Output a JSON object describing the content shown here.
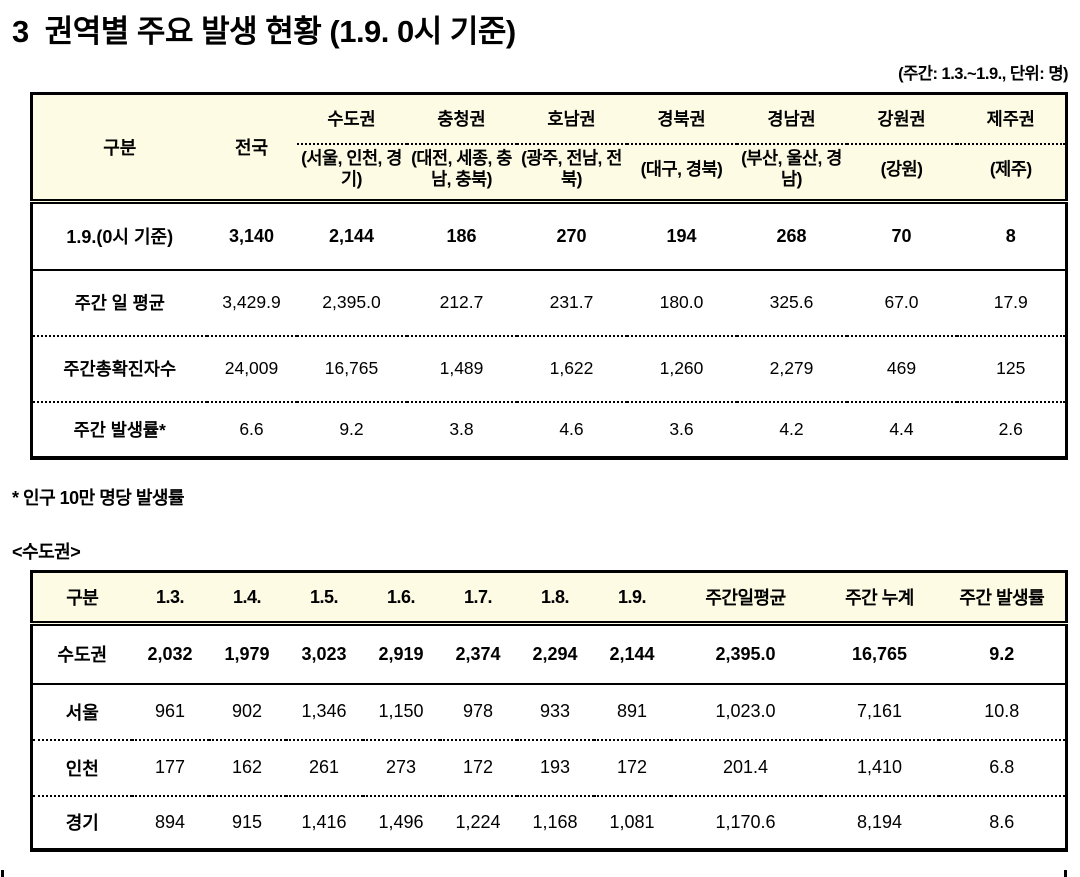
{
  "page": {
    "title_num": "3",
    "title_text": "권역별 주요 발생 현황 (1.9. 0시 기준)",
    "unit_note": "(주간: 1.3.~1.9., 단위: 명)",
    "footnote": "* 인구 10만 명당 발생률",
    "section2_heading": "<수도권>"
  },
  "colors": {
    "header_bg": "#FDFBE3",
    "border": "#000000"
  },
  "table1": {
    "col_header_category": "구분",
    "col_header_national": "전국",
    "regions": [
      {
        "name": "수도권",
        "sub": "(서울, 인천, 경기)"
      },
      {
        "name": "충청권",
        "sub": "(대전, 세종, 충남, 충북)"
      },
      {
        "name": "호남권",
        "sub": "(광주, 전남, 전북)"
      },
      {
        "name": "경북권",
        "sub": "(대구, 경북)"
      },
      {
        "name": "경남권",
        "sub": "(부산, 울산, 경남)"
      },
      {
        "name": "강원권",
        "sub": "(강원)"
      },
      {
        "name": "제주권",
        "sub": "(제주)"
      }
    ],
    "rows": [
      {
        "label": "1.9.(0시 기준)",
        "bold": true,
        "values": [
          "3,140",
          "2,144",
          "186",
          "270",
          "194",
          "268",
          "70",
          "8"
        ]
      },
      {
        "label": "주간 일 평균",
        "bold": false,
        "values": [
          "3,429.9",
          "2,395.0",
          "212.7",
          "231.7",
          "180.0",
          "325.6",
          "67.0",
          "17.9"
        ]
      },
      {
        "label": "주간총확진자수",
        "bold": false,
        "values": [
          "24,009",
          "16,765",
          "1,489",
          "1,622",
          "1,260",
          "2,279",
          "469",
          "125"
        ]
      },
      {
        "label": "주간 발생률*",
        "bold": false,
        "values": [
          "6.6",
          "9.2",
          "3.8",
          "4.6",
          "3.6",
          "4.2",
          "4.4",
          "2.6"
        ]
      }
    ]
  },
  "table2": {
    "headers": [
      "구분",
      "1.3.",
      "1.4.",
      "1.5.",
      "1.6.",
      "1.7.",
      "1.8.",
      "1.9.",
      "주간일평균",
      "주간 누계",
      "주간 발생률"
    ],
    "rows": [
      {
        "label": "수도권",
        "bold": true,
        "values": [
          "2,032",
          "1,979",
          "3,023",
          "2,919",
          "2,374",
          "2,294",
          "2,144",
          "2,395.0",
          "16,765",
          "9.2"
        ]
      },
      {
        "label": "서울",
        "bold": false,
        "values": [
          "961",
          "902",
          "1,346",
          "1,150",
          "978",
          "933",
          "891",
          "1,023.0",
          "7,161",
          "10.8"
        ]
      },
      {
        "label": "인천",
        "bold": false,
        "values": [
          "177",
          "162",
          "261",
          "273",
          "172",
          "193",
          "172",
          "201.4",
          "1,410",
          "6.8"
        ]
      },
      {
        "label": "경기",
        "bold": false,
        "values": [
          "894",
          "915",
          "1,416",
          "1,496",
          "1,224",
          "1,168",
          "1,081",
          "1,170.6",
          "8,194",
          "8.6"
        ]
      }
    ]
  }
}
